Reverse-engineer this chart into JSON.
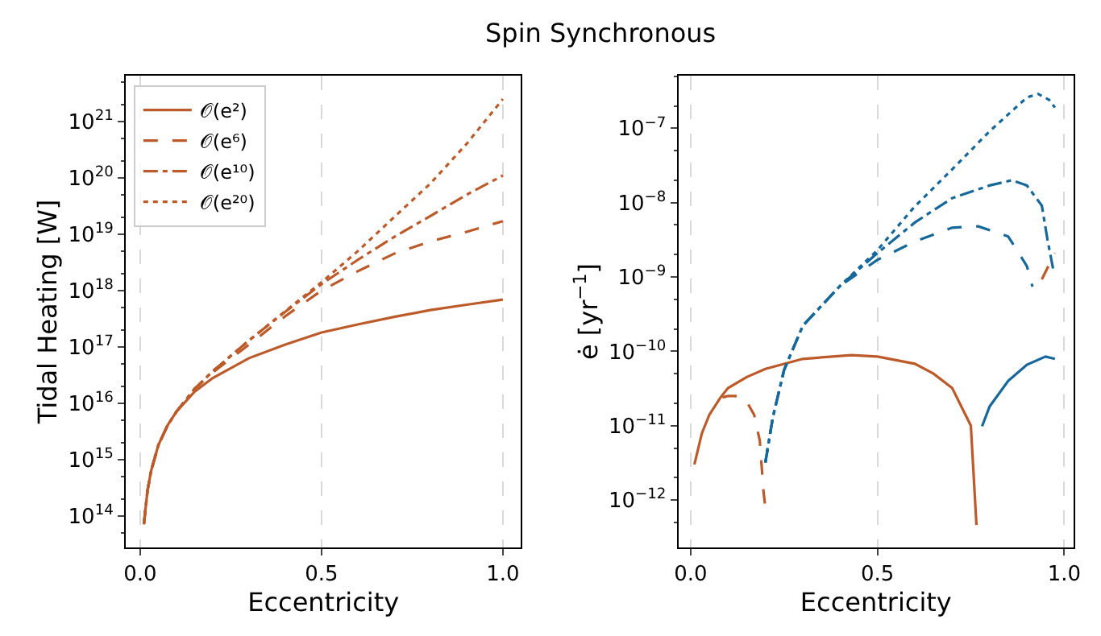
{
  "chart_data": [
    {
      "type": "line",
      "title": "Spin Synchronous",
      "xlabel": "Eccentricity",
      "ylabel": "Tidal Heating [W]",
      "log": "y",
      "grid": "x",
      "legend": "top left",
      "xlim": [
        -0.04,
        1.05
      ],
      "xticks": [
        {
          "value": 0,
          "label": "0.0"
        },
        {
          "value": 0.5,
          "label": "0.5"
        },
        {
          "value": 1,
          "label": "1.0"
        }
      ],
      "ylim": [
        27500000000000.0,
        6.5e+21
      ],
      "yticks": [
        {
          "value": 100000000000000.0,
          "label": "10$^{14}$"
        },
        {
          "value": 1000000000000000.0,
          "label": "10$^{15}$"
        },
        {
          "value": 1e+16,
          "label": "10$^{16}$"
        },
        {
          "value": 1e+17,
          "label": "10$^{17}$"
        },
        {
          "value": 1e+18,
          "label": "10$^{18}$"
        },
        {
          "value": 1e+19,
          "label": "10$^{19}$"
        },
        {
          "value": 1e+20,
          "label": "10$^{20}$"
        },
        {
          "value": 1e+21,
          "label": "10$^{21}$"
        }
      ],
      "x": [
        0.01,
        0.02,
        0.03,
        0.05,
        0.075,
        0.1,
        0.15,
        0.2,
        0.3,
        0.4,
        0.5,
        0.6,
        0.7,
        0.8,
        0.9,
        1.0
      ],
      "series": [
        {
          "name": "𝒪(e²)",
          "color": "#bc5a2a",
          "line_style": "solid",
          "values": [
            71000000000000.0,
            280000000000000.0,
            630000000000000.0,
            1800000000000000.0,
            4000000000000000.0,
            7100000000000000.0,
            1.6e+16,
            2.8e+16,
            6.3e+16,
            1.1e+17,
            1.8e+17,
            2.5e+17,
            3.4e+17,
            4.5e+17,
            5.6e+17,
            6.9e+17
          ]
        },
        {
          "name": "𝒪(e⁶)",
          "color": "#bc5a2a",
          "line_style": "dashed",
          "values": [
            71000000000000.0,
            280000000000000.0,
            630000000000000.0,
            1800000000000000.0,
            4000000000000000.0,
            7100000000000000.0,
            1.8e+16,
            3.5e+16,
            1.1e+17,
            3.5e+17,
            1e+18,
            2.2e+18,
            4.5e+18,
            7.4e+18,
            1.1e+19,
            1.7e+19
          ]
        },
        {
          "name": "𝒪(e¹⁰)",
          "color": "#bc5a2a",
          "line_style": "dashdot",
          "values": [
            71000000000000.0,
            280000000000000.0,
            630000000000000.0,
            1800000000000000.0,
            4000000000000000.0,
            7100000000000000.0,
            1.8e+16,
            3.7e+16,
            1.3e+17,
            4.2e+17,
            1.3e+18,
            3.5e+18,
            8.9e+18,
            2.1e+19,
            5e+19,
            1.1e+20
          ]
        },
        {
          "name": "𝒪(e²⁰)",
          "color": "#bc5a2a",
          "line_style": "dotted",
          "values": [
            71000000000000.0,
            280000000000000.0,
            630000000000000.0,
            1800000000000000.0,
            4000000000000000.0,
            7100000000000000.0,
            1.8e+16,
            3.7e+16,
            1.3e+17,
            4.3e+17,
            1.4e+18,
            5e+18,
            2e+19,
            7.9e+19,
            4e+20,
            2.5e+21
          ]
        }
      ]
    },
    {
      "type": "line",
      "xlabel": "Eccentricity",
      "ylabel": "ė [yr$^{−1}$]",
      "log": "y",
      "grid": "x",
      "xlim": [
        -0.033,
        1.025
      ],
      "xticks": [
        {
          "value": 0,
          "label": "0.0"
        },
        {
          "value": 0.5,
          "label": "0.5"
        },
        {
          "value": 1,
          "label": "1.0"
        }
      ],
      "ylim": [
        2.3e-13,
        5.1e-07
      ],
      "yticks": [
        {
          "value": 1e-12,
          "label": "10$^{−12}$"
        },
        {
          "value": 1e-11,
          "label": "10$^{−11}$"
        },
        {
          "value": 1e-10,
          "label": "10$^{−10}$"
        },
        {
          "value": 1e-09,
          "label": "10$^{−9}$"
        },
        {
          "value": 1e-08,
          "label": "10$^{−8}$"
        },
        {
          "value": 1e-07,
          "label": "10$^{−7}$"
        }
      ],
      "series": [
        {
          "color": "#bc5a2a",
          "line_style": "solid",
          "x": [
            0.01,
            0.03,
            0.05,
            0.08,
            0.1,
            0.15,
            0.2,
            0.3,
            0.43,
            0.5,
            0.6,
            0.65,
            0.7,
            0.75,
            0.765
          ],
          "values": [
            3e-12,
            7.9e-12,
            1.4e-11,
            2.4e-11,
            3.2e-11,
            4.5e-11,
            5.8e-11,
            7.9e-11,
            8.9e-11,
            8.5e-11,
            6.8e-11,
            5e-11,
            3.2e-11,
            1e-11,
            4.6e-13
          ]
        },
        {
          "color": "#17689a",
          "line_style": "solid",
          "x": [
            0.78,
            0.8,
            0.85,
            0.9,
            0.95,
            0.975
          ],
          "values": [
            9.8e-12,
            1.8e-11,
            4e-11,
            6.6e-11,
            8.5e-11,
            7.9e-11
          ]
        },
        {
          "color": "#bc5a2a",
          "line_style": "dashed",
          "x": [
            0.085,
            0.1,
            0.12,
            0.15,
            0.17,
            0.185,
            0.195,
            0.2
          ],
          "values": [
            2.4e-11,
            2.5e-11,
            2.5e-11,
            2.1e-11,
            1.4e-11,
            6.3e-12,
            1.3e-12,
            7.9e-13
          ]
        },
        {
          "color": "#bc5a2a",
          "line_style": "dashed",
          "x": [
            0.94,
            0.975
          ],
          "values": [
            9.3e-10,
            2.1e-09
          ]
        },
        {
          "color": "#17689a",
          "line_style": "dashed",
          "x": [
            0.2,
            0.22,
            0.25,
            0.3,
            0.4,
            0.5,
            0.6,
            0.7,
            0.77,
            0.85,
            0.9,
            0.915
          ],
          "values": [
            3.2e-12,
            1.3e-11,
            5.6e-11,
            2.2e-10,
            7.6e-10,
            1.7e-09,
            3e-09,
            4.6e-09,
            4.8e-09,
            3.5e-09,
            1.4e-09,
            7.4e-10
          ]
        },
        {
          "color": "#17689a",
          "line_style": "dashdot",
          "x": [
            0.2,
            0.22,
            0.25,
            0.3,
            0.4,
            0.5,
            0.6,
            0.7,
            0.8,
            0.86,
            0.9,
            0.94,
            0.955,
            0.97
          ],
          "values": [
            3.2e-12,
            1.3e-11,
            5.6e-11,
            2.2e-10,
            7.6e-10,
            2.1e-09,
            5.4e-09,
            1.15e-08,
            1.7e-08,
            2e-08,
            1.7e-08,
            9.1e-09,
            3.2e-09,
            1.3e-09
          ]
        },
        {
          "color": "#17689a",
          "line_style": "dotted",
          "x": [
            0.2,
            0.22,
            0.25,
            0.3,
            0.4,
            0.5,
            0.6,
            0.7,
            0.8,
            0.9,
            0.93,
            0.96,
            0.975
          ],
          "values": [
            3.2e-12,
            1.3e-11,
            5.6e-11,
            2.2e-10,
            7.6e-10,
            2.3e-09,
            8.9e-09,
            2.8e-08,
            9.1e-08,
            2.6e-07,
            2.9e-07,
            2.4e-07,
            1.9e-07
          ]
        }
      ]
    }
  ]
}
